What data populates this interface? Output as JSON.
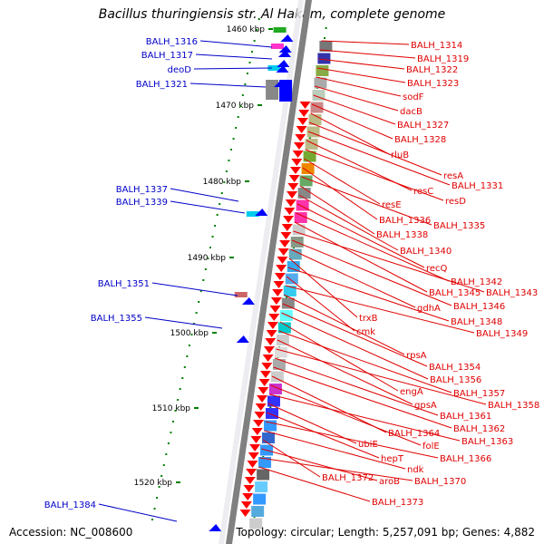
{
  "title": "Bacillus thuringiensis str. Al Hakam, complete genome",
  "footer": {
    "accession": "Accession: NC_008600",
    "summary": "Topology: circular; Length: 5,257,091 bp; Genes: 4,882"
  },
  "colors": {
    "left_label": "#0000c8",
    "right_label": "#e00000",
    "forward_gene": "#0000ff",
    "reverse_gene": "#ff0000",
    "tick": "#008000",
    "backbone": "#808080"
  },
  "kbp_labels": [
    "1460 kbp",
    "1470 kbp",
    "1480 kbp",
    "1490 kbp",
    "1500 kbp",
    "1510 kbp",
    "1520 kbp"
  ],
  "left_genes": [
    "BALH_1316",
    "BALH_1317",
    "deoD",
    "BALH_1321",
    "BALH_1337",
    "BALH_1339",
    "BALH_1351",
    "BALH_1355",
    "BALH_1384"
  ],
  "right_genes": [
    "BALH_1314",
    "BALH_1319",
    "BALH_1322",
    "BALH_1323",
    "sodF",
    "dacB",
    "BALH_1327",
    "BALH_1328",
    "rluB",
    "resA",
    "BALH_1331",
    "resC",
    "resD",
    "resE",
    "BALH_1336",
    "BALH_1335",
    "BALH_1338",
    "BALH_1340",
    "recQ",
    "BALH_1342",
    "BALH_1345",
    "BALH_1343",
    "BALH_1346",
    "gdhA",
    "trxB",
    "BALH_1348",
    "cmk",
    "BALH_1349",
    "rpsA",
    "BALH_1354",
    "BALH_1356",
    "engA",
    "BALH_1357",
    "gpsA",
    "BALH_1358",
    "BALH_1361",
    "BALH_1362",
    "BALH_1364",
    "folE",
    "BALH_1363",
    "ubiE",
    "hepT",
    "BALH_1366",
    "ndk",
    "BALH_1372",
    "aroB",
    "BALH_1370",
    "BALH_1373"
  ]
}
